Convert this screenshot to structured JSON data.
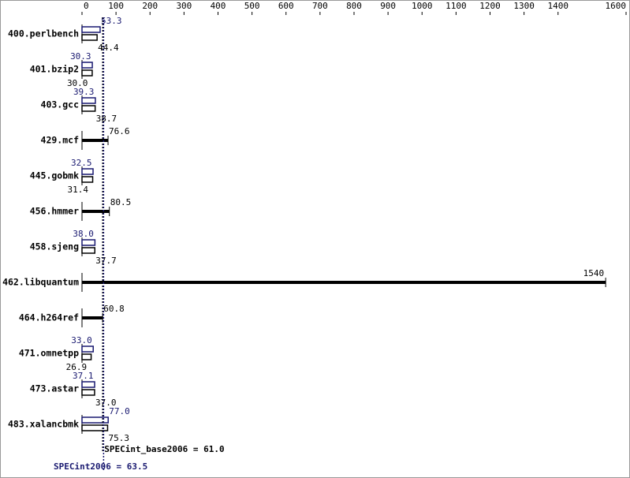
{
  "chart_data": {
    "type": "bar",
    "categories": [
      "400.perlbench",
      "401.bzip2",
      "403.gcc",
      "429.mcf",
      "445.gobmk",
      "456.hmmer",
      "458.sjeng",
      "462.libquantum",
      "464.h264ref",
      "471.omnetpp",
      "473.astar",
      "483.xalancbmk"
    ],
    "series": [
      {
        "color": "#000000",
        "values": [
          44.4,
          30.0,
          38.7,
          76.6,
          31.4,
          80.5,
          37.7,
          1540,
          60.8,
          26.9,
          37.0,
          75.3
        ],
        "value_labels": [
          "44.4",
          "30.0",
          "38.7",
          "76.6",
          "31.4",
          "80.5",
          "37.7",
          "1540",
          "60.8",
          "26.9",
          "37.0",
          "75.3"
        ]
      },
      {
        "color": "#191970",
        "values": [
          53.3,
          30.3,
          39.3,
          null,
          32.5,
          null,
          38.0,
          null,
          null,
          33.0,
          37.1,
          77.0
        ],
        "value_labels": [
          "53.3",
          "30.3",
          "39.3",
          null,
          "32.5",
          null,
          "38.0",
          null,
          null,
          "33.0",
          "37.1",
          "77.0"
        ]
      }
    ],
    "xlim": [
      0,
      1600
    ],
    "xticks": [
      0,
      100,
      200,
      300,
      400,
      500,
      600,
      700,
      800,
      900,
      1000,
      1100,
      1200,
      1300,
      1400,
      1600
    ],
    "annotations": [
      {
        "label": "SPECint_base2006 = 61.0",
        "value": 61.0,
        "color": "#000000"
      },
      {
        "label": "SPECint2006 = 63.5",
        "value": 63.5,
        "color": "#191970"
      }
    ]
  }
}
